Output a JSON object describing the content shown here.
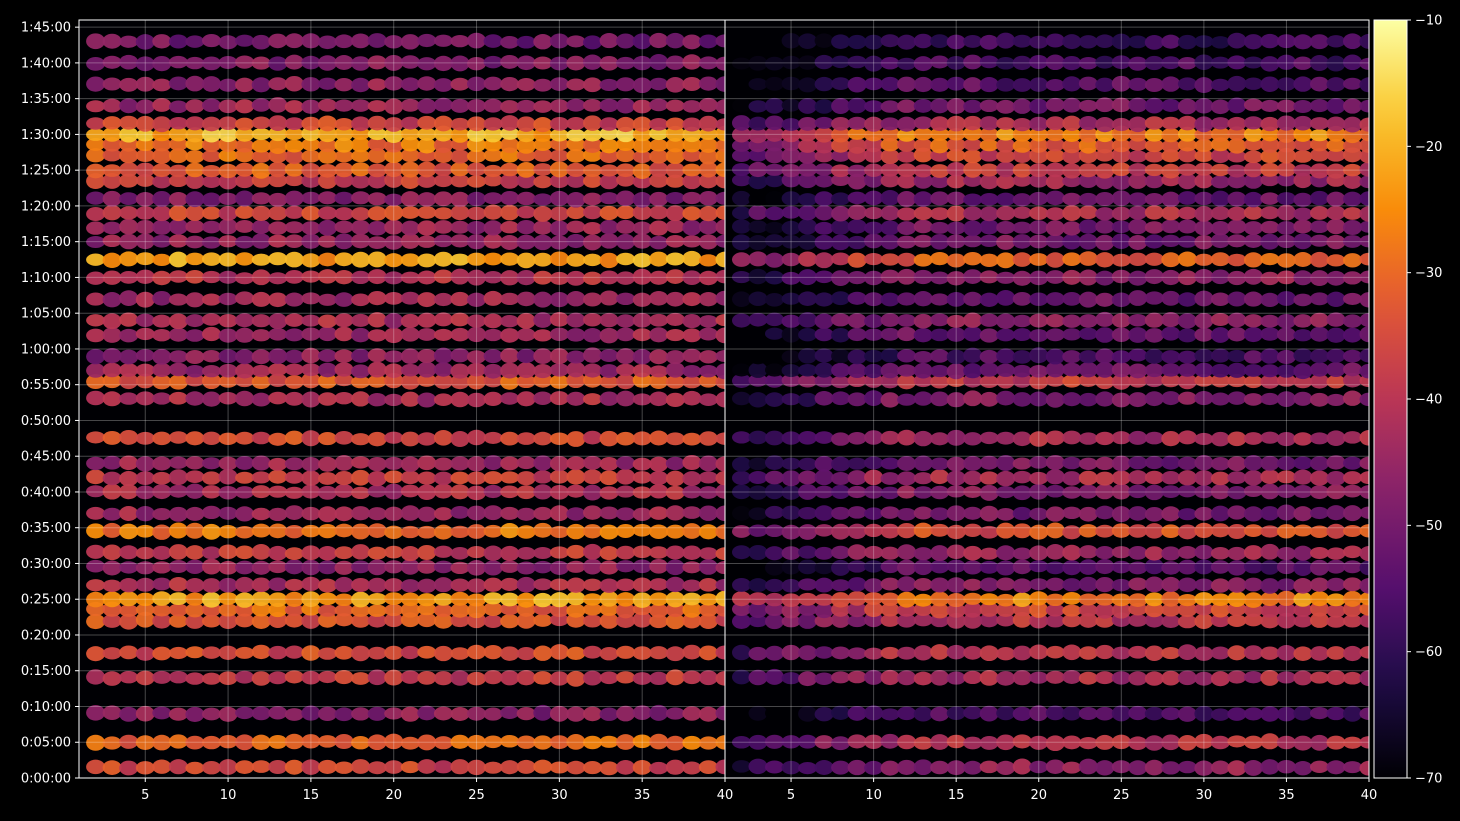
{
  "chart_data": {
    "type": "heatmap",
    "title": "",
    "xlabel": "",
    "ylabel": "",
    "colormap": "inferno",
    "grid": true,
    "x_tick_labels": [
      "5",
      "10",
      "15",
      "20",
      "25",
      "30",
      "35",
      "40"
    ],
    "x_ticks": [
      5,
      10,
      15,
      20,
      25,
      30,
      35,
      40
    ],
    "xlim": [
      1,
      40
    ],
    "y_tick_labels": [
      "0:00:00",
      "0:05:00",
      "0:10:00",
      "0:15:00",
      "0:20:00",
      "0:25:00",
      "0:30:00",
      "0:35:00",
      "0:40:00",
      "0:45:00",
      "0:50:00",
      "0:55:00",
      "1:00:00",
      "1:05:00",
      "1:10:00",
      "1:15:00",
      "1:20:00",
      "1:25:00",
      "1:30:00",
      "1:35:00",
      "1:40:00",
      "1:45:00"
    ],
    "ylim_minutes": [
      0,
      106
    ],
    "colorbar": {
      "range": [
        -70,
        -10
      ],
      "tick_values": [
        -10,
        -20,
        -30,
        -40,
        -50,
        -60,
        -70
      ],
      "tick_labels": [
        "−10",
        "−20",
        "−30",
        "−40",
        "−50",
        "−60",
        "−70"
      ]
    },
    "panels": [
      {
        "name": "left",
        "strong_bands": [
          {
            "minute": 1.5,
            "value": -36
          },
          {
            "minute": 5,
            "value": -30
          },
          {
            "minute": 9,
            "value": -47
          },
          {
            "minute": 14,
            "value": -38
          },
          {
            "minute": 17.5,
            "value": -35
          },
          {
            "minute": 22,
            "value": -34
          },
          {
            "minute": 23.5,
            "value": -30
          },
          {
            "minute": 25,
            "value": -22
          },
          {
            "minute": 27,
            "value": -42
          },
          {
            "minute": 29.5,
            "value": -46
          },
          {
            "minute": 31.5,
            "value": -38
          },
          {
            "minute": 34.5,
            "value": -28
          },
          {
            "minute": 37,
            "value": -44
          },
          {
            "minute": 40,
            "value": -42
          },
          {
            "minute": 42,
            "value": -38
          },
          {
            "minute": 44,
            "value": -44
          },
          {
            "minute": 47.5,
            "value": -35
          },
          {
            "minute": 53,
            "value": -42
          },
          {
            "minute": 55.5,
            "value": -32
          },
          {
            "minute": 57,
            "value": -44
          },
          {
            "minute": 59,
            "value": -47
          },
          {
            "minute": 62,
            "value": -44
          },
          {
            "minute": 64,
            "value": -42
          },
          {
            "minute": 67,
            "value": -44
          },
          {
            "minute": 70,
            "value": -40
          },
          {
            "minute": 72.5,
            "value": -22
          },
          {
            "minute": 75,
            "value": -45
          },
          {
            "minute": 77,
            "value": -44
          },
          {
            "minute": 79,
            "value": -36
          },
          {
            "minute": 81,
            "value": -48
          },
          {
            "minute": 83.5,
            "value": -38
          },
          {
            "minute": 85,
            "value": -32
          },
          {
            "minute": 87,
            "value": -30
          },
          {
            "minute": 88.5,
            "value": -28
          },
          {
            "minute": 90,
            "value": -20
          },
          {
            "minute": 91.5,
            "value": -36
          },
          {
            "minute": 94,
            "value": -44
          },
          {
            "minute": 97,
            "value": -46
          },
          {
            "minute": 100,
            "value": -48
          },
          {
            "minute": 103,
            "value": -50
          }
        ]
      },
      {
        "name": "right",
        "strong_bands": [
          {
            "minute": 1.5,
            "value": -46
          },
          {
            "minute": 5,
            "value": -40
          },
          {
            "minute": 9,
            "value": -55
          },
          {
            "minute": 14,
            "value": -42
          },
          {
            "minute": 17.5,
            "value": -40
          },
          {
            "minute": 22,
            "value": -40
          },
          {
            "minute": 23.5,
            "value": -36
          },
          {
            "minute": 25,
            "value": -26
          },
          {
            "minute": 27,
            "value": -48
          },
          {
            "minute": 29.5,
            "value": -54
          },
          {
            "minute": 31.5,
            "value": -44
          },
          {
            "minute": 34.5,
            "value": -34
          },
          {
            "minute": 37,
            "value": -50
          },
          {
            "minute": 40,
            "value": -48
          },
          {
            "minute": 42,
            "value": -42
          },
          {
            "minute": 44,
            "value": -50
          },
          {
            "minute": 47.5,
            "value": -42
          },
          {
            "minute": 53,
            "value": -48
          },
          {
            "minute": 55.5,
            "value": -38
          },
          {
            "minute": 57,
            "value": -52
          },
          {
            "minute": 59,
            "value": -56
          },
          {
            "minute": 62,
            "value": -52
          },
          {
            "minute": 64,
            "value": -46
          },
          {
            "minute": 67,
            "value": -52
          },
          {
            "minute": 70,
            "value": -46
          },
          {
            "minute": 72.5,
            "value": -32
          },
          {
            "minute": 75,
            "value": -50
          },
          {
            "minute": 77,
            "value": -50
          },
          {
            "minute": 79,
            "value": -42
          },
          {
            "minute": 81,
            "value": -52
          },
          {
            "minute": 83.5,
            "value": -44
          },
          {
            "minute": 85,
            "value": -38
          },
          {
            "minute": 87,
            "value": -36
          },
          {
            "minute": 88.5,
            "value": -32
          },
          {
            "minute": 90,
            "value": -26
          },
          {
            "minute": 91.5,
            "value": -42
          },
          {
            "minute": 94,
            "value": -50
          },
          {
            "minute": 97,
            "value": -54
          },
          {
            "minute": 100,
            "value": -56
          },
          {
            "minute": 103,
            "value": -58
          }
        ]
      }
    ]
  }
}
